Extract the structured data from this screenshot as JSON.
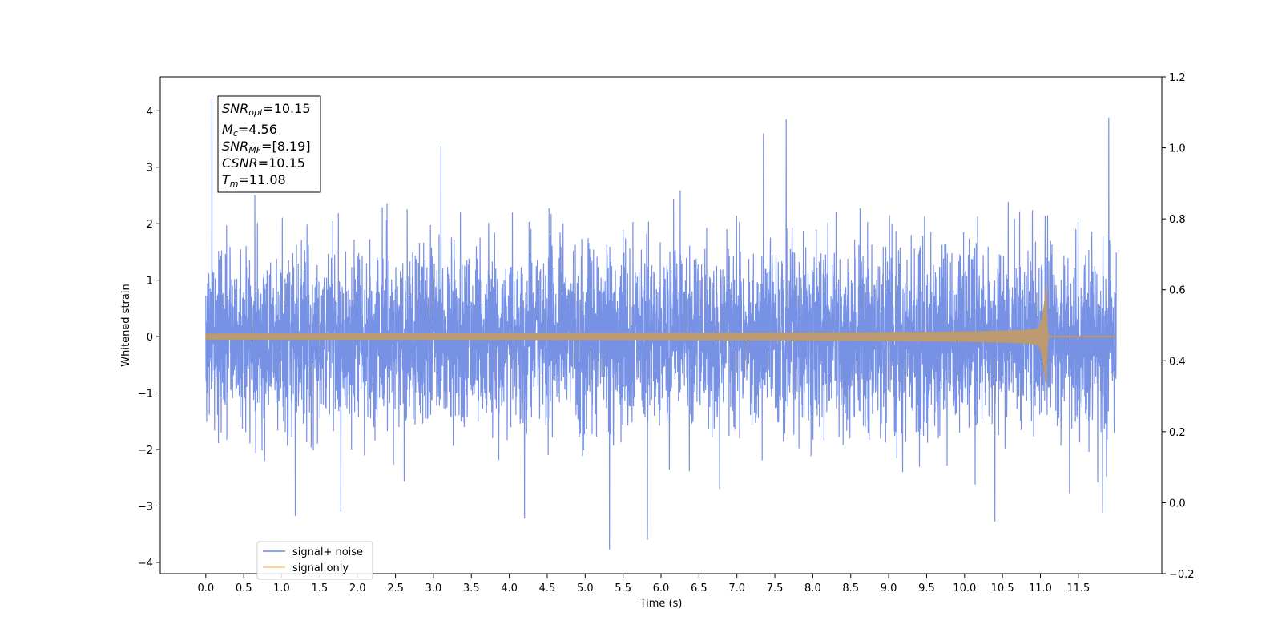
{
  "chart_data": {
    "type": "line",
    "xlabel": "Time (s)",
    "ylabel": "Whitened strain",
    "xlim": [
      -0.6,
      12.6
    ],
    "ylim": [
      -4.2,
      4.6
    ],
    "ylim_right": [
      -0.2,
      1.2
    ],
    "x_ticks": [
      0.0,
      0.5,
      1.0,
      1.5,
      2.0,
      2.5,
      3.0,
      3.5,
      4.0,
      4.5,
      5.0,
      5.5,
      6.0,
      6.5,
      7.0,
      7.5,
      8.0,
      8.5,
      9.0,
      9.5,
      10.0,
      10.5,
      11.0,
      11.5
    ],
    "x_tick_labels": [
      "0.0",
      "0.5",
      "1.0",
      "1.5",
      "2.0",
      "2.5",
      "3.0",
      "3.5",
      "4.0",
      "4.5",
      "5.0",
      "5.5",
      "6.0",
      "6.5",
      "7.0",
      "7.5",
      "8.0",
      "8.5",
      "9.0",
      "9.5",
      "10.0",
      "10.5",
      "11.0",
      "11.5"
    ],
    "y_ticks": [
      -4,
      -3,
      -2,
      -1,
      0,
      1,
      2,
      3,
      4
    ],
    "y_tick_labels": [
      "−4",
      "−3",
      "−2",
      "−1",
      "0",
      "1",
      "2",
      "3",
      "4"
    ],
    "y_ticks_right": [
      -0.2,
      0.0,
      0.2,
      0.4,
      0.6,
      0.8,
      1.0,
      1.2
    ],
    "y_tick_labels_right": [
      "−0.2",
      "0.0",
      "0.2",
      "0.4",
      "0.6",
      "0.8",
      "1.0",
      "1.2"
    ],
    "grid": false,
    "legend_position": "bottom-left",
    "series": [
      {
        "name": "signal+ noise",
        "color": "#6b88e3",
        "x_range": [
          0.0,
          12.0
        ],
        "peaks": [
          {
            "x": 0.08,
            "y": 4.22
          },
          {
            "x": 1.78,
            "y": 3.58
          },
          {
            "x": 3.1,
            "y": 3.38
          },
          {
            "x": 5.32,
            "y": 3.95
          },
          {
            "x": 7.35,
            "y": 3.6
          },
          {
            "x": 7.65,
            "y": 3.85
          },
          {
            "x": 11.9,
            "y": 3.88
          },
          {
            "x": 5.32,
            "y": -3.77
          },
          {
            "x": 5.82,
            "y": -3.6
          },
          {
            "x": 1.18,
            "y": -3.18
          },
          {
            "x": 1.78,
            "y": -3.1
          },
          {
            "x": 4.2,
            "y": -3.22
          },
          {
            "x": 10.4,
            "y": -3.28
          },
          {
            "x": 11.82,
            "y": -3.12
          }
        ]
      },
      {
        "name": "signal only",
        "color": "#ffc66b",
        "x_range": [
          0.0,
          12.0
        ],
        "merger_time": 11.08,
        "peak_amplitude": 0.95,
        "trough_amplitude": -0.85
      }
    ]
  },
  "annotation": {
    "snr_opt": {
      "main": "SNR",
      "sub": "opt",
      "value": "=10.15"
    },
    "mc": {
      "main": "M",
      "sub": "c",
      "value": "=4.56"
    },
    "snr_mf": {
      "main": "SNR",
      "sub": "MF",
      "value": "=[8.19]"
    },
    "csnr": {
      "main": "CSNR",
      "value": "=10.15"
    },
    "tm": {
      "main": "T",
      "sub": "m",
      "value": "=11.08"
    }
  }
}
